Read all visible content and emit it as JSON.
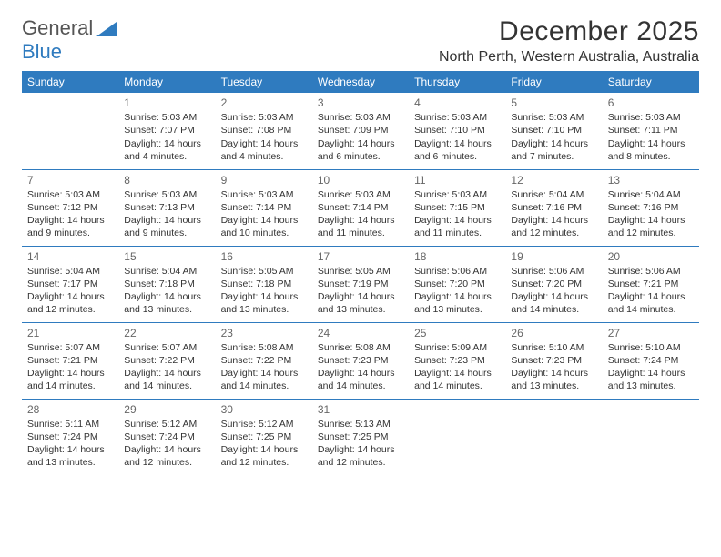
{
  "logo": {
    "text1": "General",
    "text2": "Blue"
  },
  "title": "December 2025",
  "location": "North Perth, Western Australia, Australia",
  "colors": {
    "header_bg": "#2f7bbf",
    "header_fg": "#ffffff",
    "rule": "#2f7bbf",
    "text": "#333333",
    "daynum": "#666666",
    "logo_gray": "#555555",
    "logo_blue": "#2f7bbf",
    "page_bg": "#ffffff"
  },
  "dayNames": [
    "Sunday",
    "Monday",
    "Tuesday",
    "Wednesday",
    "Thursday",
    "Friday",
    "Saturday"
  ],
  "weeks": [
    [
      null,
      {
        "n": "1",
        "sr": "5:03 AM",
        "ss": "7:07 PM",
        "dl": "14 hours and 4 minutes."
      },
      {
        "n": "2",
        "sr": "5:03 AM",
        "ss": "7:08 PM",
        "dl": "14 hours and 4 minutes."
      },
      {
        "n": "3",
        "sr": "5:03 AM",
        "ss": "7:09 PM",
        "dl": "14 hours and 6 minutes."
      },
      {
        "n": "4",
        "sr": "5:03 AM",
        "ss": "7:10 PM",
        "dl": "14 hours and 6 minutes."
      },
      {
        "n": "5",
        "sr": "5:03 AM",
        "ss": "7:10 PM",
        "dl": "14 hours and 7 minutes."
      },
      {
        "n": "6",
        "sr": "5:03 AM",
        "ss": "7:11 PM",
        "dl": "14 hours and 8 minutes."
      }
    ],
    [
      {
        "n": "7",
        "sr": "5:03 AM",
        "ss": "7:12 PM",
        "dl": "14 hours and 9 minutes."
      },
      {
        "n": "8",
        "sr": "5:03 AM",
        "ss": "7:13 PM",
        "dl": "14 hours and 9 minutes."
      },
      {
        "n": "9",
        "sr": "5:03 AM",
        "ss": "7:14 PM",
        "dl": "14 hours and 10 minutes."
      },
      {
        "n": "10",
        "sr": "5:03 AM",
        "ss": "7:14 PM",
        "dl": "14 hours and 11 minutes."
      },
      {
        "n": "11",
        "sr": "5:03 AM",
        "ss": "7:15 PM",
        "dl": "14 hours and 11 minutes."
      },
      {
        "n": "12",
        "sr": "5:04 AM",
        "ss": "7:16 PM",
        "dl": "14 hours and 12 minutes."
      },
      {
        "n": "13",
        "sr": "5:04 AM",
        "ss": "7:16 PM",
        "dl": "14 hours and 12 minutes."
      }
    ],
    [
      {
        "n": "14",
        "sr": "5:04 AM",
        "ss": "7:17 PM",
        "dl": "14 hours and 12 minutes."
      },
      {
        "n": "15",
        "sr": "5:04 AM",
        "ss": "7:18 PM",
        "dl": "14 hours and 13 minutes."
      },
      {
        "n": "16",
        "sr": "5:05 AM",
        "ss": "7:18 PM",
        "dl": "14 hours and 13 minutes."
      },
      {
        "n": "17",
        "sr": "5:05 AM",
        "ss": "7:19 PM",
        "dl": "14 hours and 13 minutes."
      },
      {
        "n": "18",
        "sr": "5:06 AM",
        "ss": "7:20 PM",
        "dl": "14 hours and 13 minutes."
      },
      {
        "n": "19",
        "sr": "5:06 AM",
        "ss": "7:20 PM",
        "dl": "14 hours and 14 minutes."
      },
      {
        "n": "20",
        "sr": "5:06 AM",
        "ss": "7:21 PM",
        "dl": "14 hours and 14 minutes."
      }
    ],
    [
      {
        "n": "21",
        "sr": "5:07 AM",
        "ss": "7:21 PM",
        "dl": "14 hours and 14 minutes."
      },
      {
        "n": "22",
        "sr": "5:07 AM",
        "ss": "7:22 PM",
        "dl": "14 hours and 14 minutes."
      },
      {
        "n": "23",
        "sr": "5:08 AM",
        "ss": "7:22 PM",
        "dl": "14 hours and 14 minutes."
      },
      {
        "n": "24",
        "sr": "5:08 AM",
        "ss": "7:23 PM",
        "dl": "14 hours and 14 minutes."
      },
      {
        "n": "25",
        "sr": "5:09 AM",
        "ss": "7:23 PM",
        "dl": "14 hours and 14 minutes."
      },
      {
        "n": "26",
        "sr": "5:10 AM",
        "ss": "7:23 PM",
        "dl": "14 hours and 13 minutes."
      },
      {
        "n": "27",
        "sr": "5:10 AM",
        "ss": "7:24 PM",
        "dl": "14 hours and 13 minutes."
      }
    ],
    [
      {
        "n": "28",
        "sr": "5:11 AM",
        "ss": "7:24 PM",
        "dl": "14 hours and 13 minutes."
      },
      {
        "n": "29",
        "sr": "5:12 AM",
        "ss": "7:24 PM",
        "dl": "14 hours and 12 minutes."
      },
      {
        "n": "30",
        "sr": "5:12 AM",
        "ss": "7:25 PM",
        "dl": "14 hours and 12 minutes."
      },
      {
        "n": "31",
        "sr": "5:13 AM",
        "ss": "7:25 PM",
        "dl": "14 hours and 12 minutes."
      },
      null,
      null,
      null
    ]
  ],
  "labels": {
    "sunrise": "Sunrise:",
    "sunset": "Sunset:",
    "daylight": "Daylight:"
  }
}
